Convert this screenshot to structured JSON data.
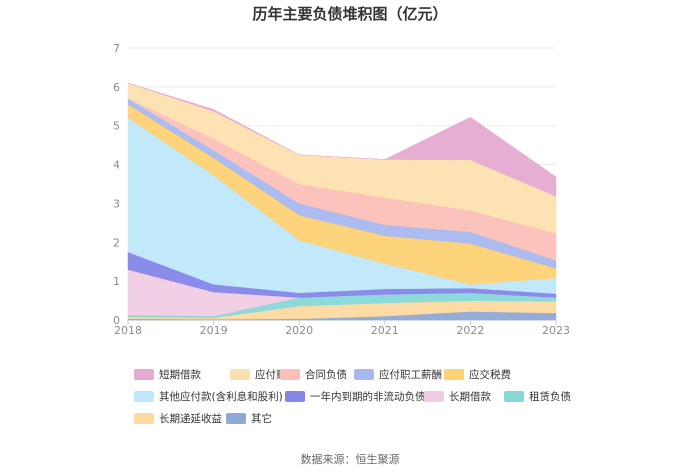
{
  "chart_data": {
    "type": "area",
    "stacked": true,
    "title": "历年主要负债堆积图（亿元）",
    "source_label": "数据来源：恒生聚源",
    "categories": [
      "2018",
      "2019",
      "2020",
      "2021",
      "2022",
      "2023"
    ],
    "ylim": [
      0,
      7
    ],
    "yticks": [
      0,
      1,
      2,
      3,
      4,
      5,
      6,
      7
    ],
    "legend_position": "bottom",
    "grid": "horizontal",
    "series": [
      {
        "name": "其它",
        "color": "#8ea9d6",
        "values": [
          0.03,
          0.02,
          0.03,
          0.1,
          0.22,
          0.18
        ]
      },
      {
        "name": "长期递延收益",
        "color": "#fdd9a0",
        "values": [
          0.05,
          0.04,
          0.33,
          0.34,
          0.28,
          0.3
        ]
      },
      {
        "name": "租赁负债",
        "color": "#86d8d8",
        "values": [
          0.05,
          0.04,
          0.22,
          0.22,
          0.2,
          0.1
        ]
      },
      {
        "name": "长期借款",
        "color": "#f0cce4",
        "values": [
          1.17,
          0.62,
          0.0,
          0.0,
          0.0,
          0.0
        ]
      },
      {
        "name": "一年内到期的非流动负债",
        "color": "#8585e8",
        "values": [
          0.45,
          0.2,
          0.12,
          0.14,
          0.12,
          0.1
        ]
      },
      {
        "name": "其他应付款(含利息和股利)",
        "color": "#bfe8fa",
        "values": [
          3.45,
          2.8,
          1.35,
          0.65,
          0.1,
          0.4
        ]
      },
      {
        "name": "应交税费",
        "color": "#fdd274",
        "values": [
          0.35,
          0.45,
          0.65,
          0.72,
          1.05,
          0.25
        ]
      },
      {
        "name": "应付职工薪酬",
        "color": "#a8b8f0",
        "values": [
          0.15,
          0.2,
          0.3,
          0.28,
          0.3,
          0.2
        ]
      },
      {
        "name": "合同负债",
        "color": "#fcc0b8",
        "values": [
          0.0,
          0.3,
          0.5,
          0.7,
          0.55,
          0.7
        ]
      },
      {
        "name": "应付账款",
        "color": "#fde0b0",
        "values": [
          0.4,
          0.7,
          0.75,
          0.98,
          1.3,
          0.95
        ]
      },
      {
        "name": "短期借款",
        "color": "#e6aad2",
        "values": [
          0.0,
          0.05,
          0.0,
          0.0,
          1.1,
          0.5
        ]
      }
    ],
    "legend_order": [
      "短期借款",
      "应付账款",
      "合同负债",
      "应付职工薪酬",
      "应交税费",
      "其他应付款(含利息和股利)",
      "一年内到期的非流动负债",
      "长期借款",
      "租赁负债",
      "长期递延收益",
      "其它"
    ]
  }
}
